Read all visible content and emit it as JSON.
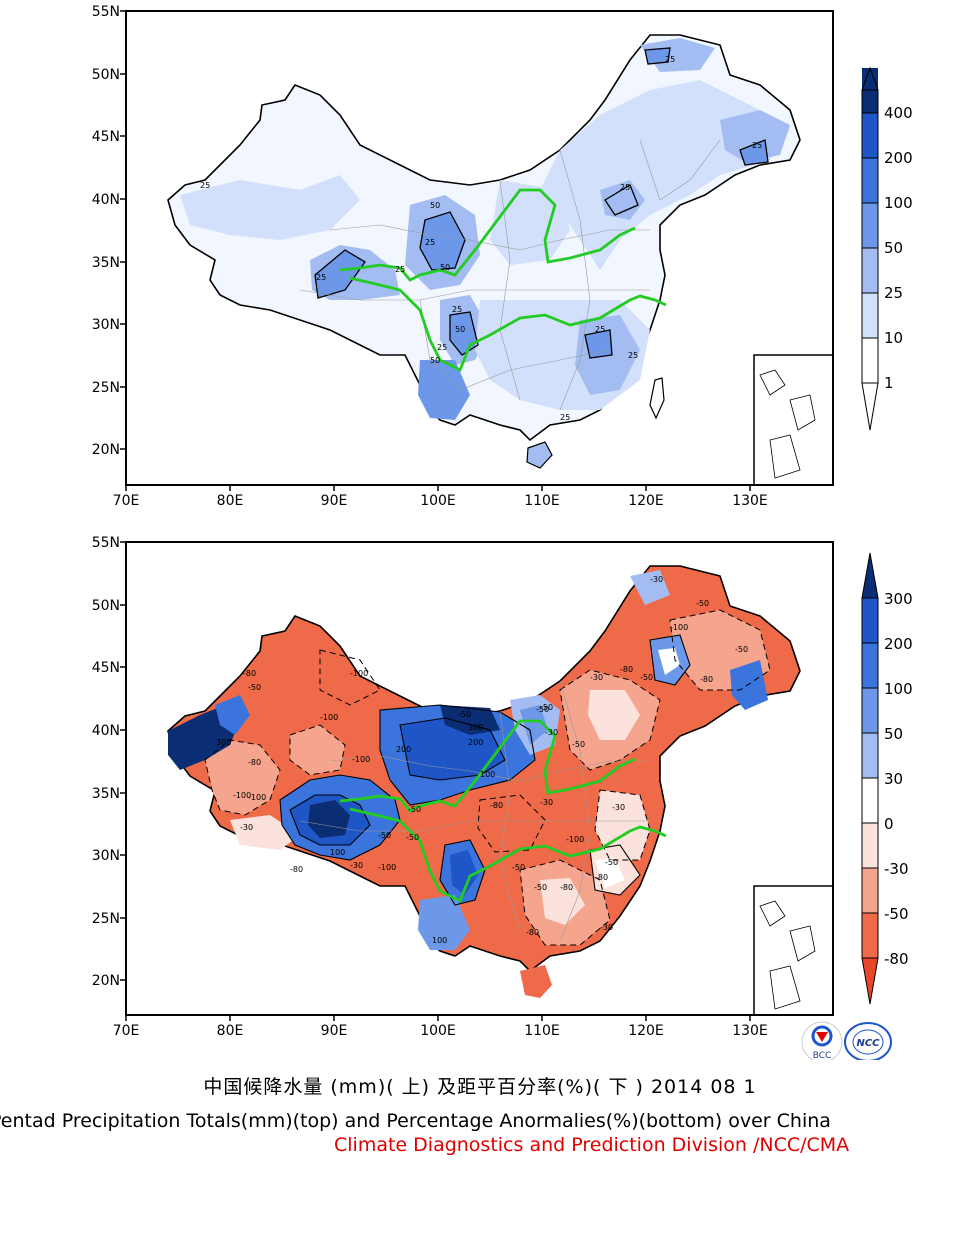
{
  "panels": [
    {
      "id": "totals",
      "latitude_labels": [
        "55N",
        "50N",
        "45N",
        "40N",
        "35N",
        "30N",
        "25N",
        "20N"
      ],
      "longitude_labels": [
        "70E",
        "80E",
        "90E",
        "100E",
        "110E",
        "120E",
        "130E"
      ],
      "colorbar": {
        "labels": [
          "400",
          "200",
          "100",
          "50",
          "25",
          "10",
          "1"
        ],
        "colors": [
          "#0b2d73",
          "#1e56c8",
          "#3a74dc",
          "#6d97e8",
          "#a3bdf2",
          "#d2e0fb",
          "#ffffff"
        ]
      },
      "contour_labels": [
        "25",
        "50",
        "25",
        "50",
        "25",
        "25",
        "25",
        "25",
        "50",
        "25",
        "25",
        "25",
        "25",
        "25",
        "25",
        "50"
      ]
    },
    {
      "id": "anomaly",
      "latitude_labels": [
        "55N",
        "50N",
        "45N",
        "40N",
        "35N",
        "30N",
        "25N",
        "20N"
      ],
      "longitude_labels": [
        "70E",
        "80E",
        "90E",
        "100E",
        "110E",
        "120E",
        "130E"
      ],
      "colorbar": {
        "labels": [
          "300",
          "200",
          "100",
          "50",
          "30",
          "0",
          "-30",
          "-50",
          "-80"
        ],
        "colors": [
          "#0b2d73",
          "#1e56c8",
          "#3a74dc",
          "#6d97e8",
          "#a3bdf2",
          "#ffffff",
          "#fbe2dc",
          "#f5a58e",
          "#ee6a48",
          "#e8452a"
        ]
      },
      "contour_labels": [
        "-100",
        "-100",
        "-80",
        "-50",
        "300",
        "-100",
        "-80",
        "200",
        "-50",
        "300",
        "200",
        "-100",
        "100",
        "-50",
        "-30",
        "-80",
        "-100",
        "-50",
        "100",
        "-50",
        "-50",
        "-30",
        "-100",
        "-80",
        "-50",
        "-30",
        "-50",
        "-80",
        "-50",
        "-30",
        "-100",
        "-50",
        "-80",
        "-30",
        "-50",
        "-30",
        "-80",
        "-50",
        "-100",
        "-30",
        "-50",
        "100",
        "-50",
        "-80",
        "-30",
        "-80"
      ]
    }
  ],
  "logos": {
    "left": "BCC",
    "right": "NCC"
  },
  "captions": {
    "chinese": "中国候降水量 (mm)( 上) 及距平百分率(%)( 下 ) 2014 08 1",
    "english": "Pentad Precipitation Totals(mm)(top) and Percentage Anormalies(%)(bottom) over China",
    "credit": "Climate Diagnostics and Prediction Division /NCC/CMA"
  },
  "colors": {
    "river": "#22cc22",
    "credit_text": "#e00000",
    "border": "#000000"
  }
}
